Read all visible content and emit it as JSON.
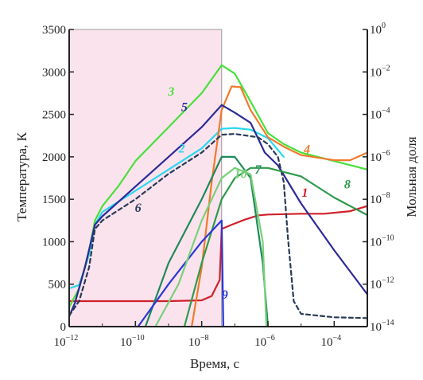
{
  "chart_data": {
    "type": "line",
    "xlabel": "Время, с",
    "ylabel_left": "Температура, К",
    "ylabel_right": "Мольная доля",
    "x_scale": "log",
    "x_range": [
      1e-12,
      0.001
    ],
    "x_ticks": [
      {
        "value": 1e-12,
        "base": "10",
        "exp": "−12"
      },
      {
        "value": 1e-10,
        "base": "10",
        "exp": "−10"
      },
      {
        "value": 1e-08,
        "base": "10",
        "exp": "−8"
      },
      {
        "value": 1e-06,
        "base": "10",
        "exp": "−6"
      },
      {
        "value": 0.0001,
        "base": "10",
        "exp": "−4"
      }
    ],
    "y_left_range": [
      0,
      3500
    ],
    "y_left_ticks": [
      "0",
      "500",
      "1000",
      "1500",
      "2000",
      "2500",
      "3000",
      "3500"
    ],
    "y_right_scale": "log",
    "y_right_range": [
      1e-14,
      1
    ],
    "y_right_ticks": [
      {
        "value": 1,
        "base": "10",
        "exp": "0"
      },
      {
        "value": 0.01,
        "base": "10",
        "exp": "−2"
      },
      {
        "value": 0.0001,
        "base": "10",
        "exp": "−4"
      },
      {
        "value": 1e-06,
        "base": "10",
        "exp": "−6"
      },
      {
        "value": 1e-08,
        "base": "10",
        "exp": "−8"
      },
      {
        "value": 1e-10,
        "base": "10",
        "exp": "−10"
      },
      {
        "value": 1e-12,
        "base": "10",
        "exp": "−12"
      },
      {
        "value": 1e-14,
        "base": "10",
        "exp": "−14"
      }
    ],
    "shaded_region": {
      "x_from": 1e-12,
      "x_to": 4e-08,
      "color": "#fbe3ee"
    },
    "series": [
      {
        "label": "1",
        "axis": "left",
        "color": "#d0202a",
        "dash": false,
        "label_at": [
          1.3e-05,
          1530
        ],
        "points": [
          [
            1e-12,
            300
          ],
          [
            1e-09,
            300
          ],
          [
            1e-08,
            310
          ],
          [
            2e-08,
            360
          ],
          [
            3.5e-08,
            550
          ],
          [
            4e-08,
            1150
          ],
          [
            8e-08,
            1200
          ],
          [
            2e-07,
            1260
          ],
          [
            5e-07,
            1310
          ],
          [
            1e-06,
            1320
          ],
          [
            1e-05,
            1330
          ],
          [
            5e-05,
            1330
          ],
          [
            0.0003,
            1360
          ],
          [
            0.001,
            1420
          ]
        ]
      },
      {
        "label": "2",
        "axis": "left",
        "color": "#29d8ee",
        "dash": false,
        "label_at": [
          2.5e-09,
          2050
        ],
        "points": [
          [
            1e-12,
            450
          ],
          [
            2e-12,
            490
          ],
          [
            4e-12,
            850
          ],
          [
            6e-12,
            1200
          ],
          [
            1e-11,
            1350
          ],
          [
            1e-10,
            1600
          ],
          [
            1e-09,
            1850
          ],
          [
            1e-08,
            2100
          ],
          [
            4e-08,
            2330
          ],
          [
            1e-07,
            2340
          ],
          [
            3e-07,
            2320
          ],
          [
            1e-06,
            2220
          ],
          [
            3e-06,
            2000
          ]
        ]
      },
      {
        "label": "3",
        "axis": "left",
        "color": "#48e03a",
        "dash": false,
        "label_at": [
          1.2e-09,
          2720
        ],
        "points": [
          [
            1e-12,
            230
          ],
          [
            2e-12,
            450
          ],
          [
            4e-12,
            900
          ],
          [
            6e-12,
            1250
          ],
          [
            1e-11,
            1420
          ],
          [
            3e-11,
            1650
          ],
          [
            1e-10,
            1950
          ],
          [
            1e-09,
            2350
          ],
          [
            1e-08,
            2750
          ],
          [
            4e-08,
            3080
          ],
          [
            1e-07,
            2980
          ],
          [
            3e-07,
            2650
          ],
          [
            1e-06,
            2280
          ],
          [
            3e-06,
            2150
          ],
          [
            1e-05,
            2050
          ],
          [
            0.0001,
            1950
          ],
          [
            0.001,
            1850
          ]
        ]
      },
      {
        "label": "4",
        "axis": "left",
        "color": "#f07a2a",
        "dash": false,
        "label_at": [
          1.5e-05,
          2040
        ],
        "points": [
          [
            5e-09,
            0
          ],
          [
            1e-08,
            700
          ],
          [
            2e-08,
            1700
          ],
          [
            4e-08,
            2550
          ],
          [
            8e-08,
            2830
          ],
          [
            1.5e-07,
            2820
          ],
          [
            3e-07,
            2550
          ],
          [
            1e-06,
            2230
          ],
          [
            3e-06,
            2120
          ],
          [
            1e-05,
            2020
          ],
          [
            0.0001,
            1960
          ],
          [
            0.0003,
            1960
          ],
          [
            0.001,
            2050
          ]
        ]
      },
      {
        "label": "5",
        "axis": "left",
        "color": "#2c2a96",
        "dash": false,
        "label_at": [
          3e-09,
          2540
        ],
        "points": [
          [
            1e-12,
            120
          ],
          [
            1.5e-12,
            280
          ],
          [
            3e-12,
            700
          ],
          [
            6e-12,
            1200
          ],
          [
            1e-11,
            1300
          ],
          [
            1e-10,
            1650
          ],
          [
            1e-09,
            2000
          ],
          [
            1e-08,
            2350
          ],
          [
            4e-08,
            2610
          ],
          [
            1e-07,
            2520
          ],
          [
            3e-07,
            2400
          ],
          [
            8e-07,
            2050
          ],
          [
            2e-06,
            1900
          ],
          [
            1e-05,
            1450
          ],
          [
            0.0001,
            900
          ],
          [
            0.001,
            380
          ]
        ]
      },
      {
        "label": "6",
        "axis": "left",
        "color": "#283a55",
        "dash": true,
        "label_at": [
          1.2e-10,
          1350
        ],
        "points": [
          [
            1e-12,
            130
          ],
          [
            2e-12,
            300
          ],
          [
            4e-12,
            700
          ],
          [
            6e-12,
            1150
          ],
          [
            1e-11,
            1250
          ],
          [
            1e-10,
            1500
          ],
          [
            1e-09,
            1800
          ],
          [
            1e-08,
            2050
          ],
          [
            4e-08,
            2260
          ],
          [
            1e-07,
            2270
          ],
          [
            5e-07,
            2230
          ],
          [
            1e-06,
            2150
          ],
          [
            2e-06,
            2000
          ],
          [
            3e-06,
            1700
          ],
          [
            4e-06,
            1050
          ],
          [
            6e-06,
            300
          ],
          [
            1e-05,
            150
          ],
          [
            0.0001,
            110
          ],
          [
            0.001,
            100
          ]
        ]
      },
      {
        "label": "7",
        "axis": "right",
        "color": "#1e8a5a",
        "dash": false,
        "label_at": [
          5e-07,
          1800
        ],
        "points": [
          [
            2e-10,
            1e-14
          ],
          [
            1e-09,
            1e-11
          ],
          [
            1e-08,
            1e-08
          ],
          [
            4e-08,
            1e-06
          ],
          [
            1e-07,
            1e-06
          ],
          [
            3e-07,
            1e-07
          ],
          [
            7e-07,
            1e-11
          ],
          [
            1e-06,
            1e-14
          ]
        ]
      },
      {
        "label": "8",
        "axis": "right",
        "color": "#2e9a4c",
        "dash": false,
        "label_at": [
          0.00025,
          1630
        ],
        "points": [
          [
            3e-09,
            1e-14
          ],
          [
            1e-08,
            1e-11
          ],
          [
            4e-08,
            1e-08
          ],
          [
            1e-07,
            1e-07
          ],
          [
            3e-07,
            3e-07
          ],
          [
            1e-06,
            3e-07
          ],
          [
            1e-05,
            1.2e-07
          ],
          [
            0.0001,
            1.2e-08
          ],
          [
            0.001,
            1.8e-09
          ]
        ]
      },
      {
        "label": "9",
        "axis": "right",
        "color": "#2a38d8",
        "dash": false,
        "label_at": [
          5e-08,
          330
        ],
        "points": [
          [
            1.2e-10,
            1e-14
          ],
          [
            1e-09,
            1e-12
          ],
          [
            1e-08,
            1e-10
          ],
          [
            4e-08,
            1e-09
          ],
          [
            4.5e-08,
            1e-14
          ]
        ]
      },
      {
        "label": "10",
        "axis": "right",
        "color": "#79d07a",
        "dash": false,
        "label_at": [
          1.5e-07,
          1750
        ],
        "points": [
          [
            4e-10,
            1e-14
          ],
          [
            2e-09,
            1e-12
          ],
          [
            1e-08,
            1e-09
          ],
          [
            4e-08,
            1e-07
          ],
          [
            1e-07,
            3e-07
          ],
          [
            3e-07,
            1.5e-07
          ],
          [
            7e-07,
            1e-10
          ],
          [
            9e-07,
            1e-14
          ]
        ]
      }
    ]
  }
}
